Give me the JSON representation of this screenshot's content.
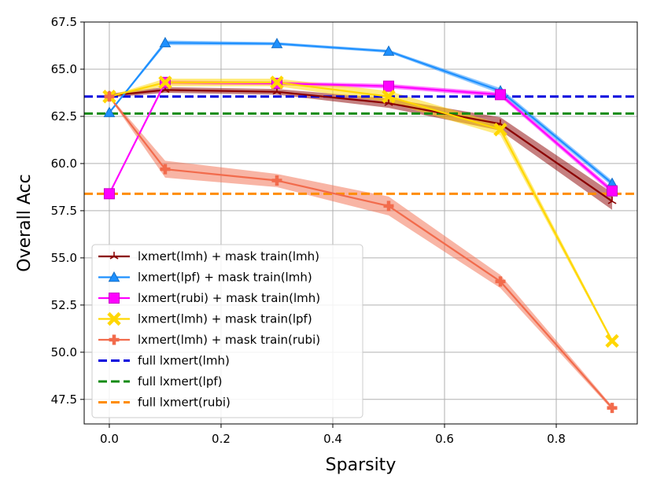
{
  "chart_data": {
    "type": "line",
    "xlabel": "Sparsity",
    "ylabel": "Overall Acc",
    "xlim": [
      -0.045,
      0.945
    ],
    "ylim": [
      46.2,
      67.5
    ],
    "xticks": [
      0.0,
      0.2,
      0.4,
      0.6,
      0.8
    ],
    "xtick_labels": [
      "0.0",
      "0.2",
      "0.4",
      "0.6",
      "0.8"
    ],
    "yticks": [
      47.5,
      50.0,
      52.5,
      55.0,
      57.5,
      60.0,
      62.5,
      65.0,
      67.5
    ],
    "ytick_labels": [
      "47.5",
      "50.0",
      "52.5",
      "55.0",
      "57.5",
      "60.0",
      "62.5",
      "65.0",
      "67.5"
    ],
    "grid": true,
    "legend_position": "lower-left",
    "x": [
      0.0,
      0.1,
      0.3,
      0.5,
      0.7,
      0.9
    ],
    "series": [
      {
        "name": "lxmert(lmh) + mask train(lmh)",
        "color": "#8b0000",
        "marker": "tri",
        "values": [
          63.6,
          63.9,
          63.8,
          63.2,
          62.1,
          58.0
        ],
        "band": [
          0.1,
          0.15,
          0.15,
          0.25,
          0.35,
          0.45
        ]
      },
      {
        "name": "lxmert(lpf) + mask train(lmh)",
        "color": "#1e90ff",
        "marker": "triangle",
        "values": [
          62.7,
          66.4,
          66.35,
          65.95,
          63.85,
          58.95
        ],
        "band": [
          0.05,
          0.12,
          0.08,
          0.08,
          0.15,
          0.15
        ]
      },
      {
        "name": "lxmert(rubi) + mask train(lmh)",
        "color": "#ff00ff",
        "marker": "square",
        "values": [
          58.4,
          64.3,
          64.25,
          64.1,
          63.65,
          58.55
        ],
        "band": [
          0.05,
          0.1,
          0.1,
          0.12,
          0.12,
          0.15
        ]
      },
      {
        "name": "lxmert(lmh) + mask train(lpf)",
        "color": "#ffd700",
        "marker": "x",
        "values": [
          63.55,
          64.3,
          64.3,
          63.55,
          61.8,
          50.6
        ],
        "band": [
          0.05,
          0.2,
          0.2,
          0.3,
          0.3,
          0.1
        ]
      },
      {
        "name": "lxmert(lmh) + mask train(rubi)",
        "color": "#f26b4c",
        "marker": "plus",
        "values": [
          63.55,
          59.7,
          59.1,
          57.75,
          53.75,
          47.05
        ],
        "band": [
          0.05,
          0.45,
          0.35,
          0.5,
          0.35,
          0.1
        ]
      }
    ],
    "reference_lines": [
      {
        "name": "full lxmert(lmh)",
        "color": "#0000dd",
        "value": 63.55
      },
      {
        "name": "full lxmert(lpf)",
        "color": "#138b13",
        "value": 62.65
      },
      {
        "name": "full lxmert(rubi)",
        "color": "#ff8c00",
        "value": 58.4
      }
    ]
  }
}
